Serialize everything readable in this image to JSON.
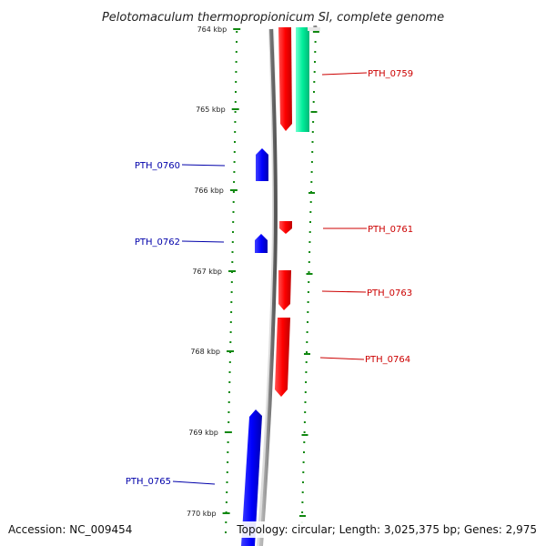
{
  "title": "Pelotomaculum thermopropionicum SI, complete genome",
  "footer": {
    "accession": "Accession: NC_009454",
    "topology": "Topology: circular; Length: 3,025,375 bp; Genes: 2,975"
  },
  "colors": {
    "forward": "#ff0000",
    "reverse": "#0000ff",
    "rna": "#00e8a0",
    "tick": "#118811",
    "backbone": "#888888"
  },
  "scale": {
    "tick_labels": [
      "764 kbp",
      "765 kbp",
      "766 kbp",
      "767 kbp",
      "768 kbp",
      "769 kbp",
      "770 kbp"
    ]
  },
  "genes": [
    {
      "name": "PTH_0759",
      "strand": "forward",
      "type": "rna"
    },
    {
      "name": "PTH_0760",
      "strand": "reverse",
      "type": "cds"
    },
    {
      "name": "PTH_0761",
      "strand": "forward",
      "type": "cds"
    },
    {
      "name": "PTH_0762",
      "strand": "reverse",
      "type": "cds"
    },
    {
      "name": "PTH_0763",
      "strand": "forward",
      "type": "cds"
    },
    {
      "name": "PTH_0764",
      "strand": "forward",
      "type": "cds"
    },
    {
      "name": "PTH_0765",
      "strand": "reverse",
      "type": "cds"
    }
  ]
}
